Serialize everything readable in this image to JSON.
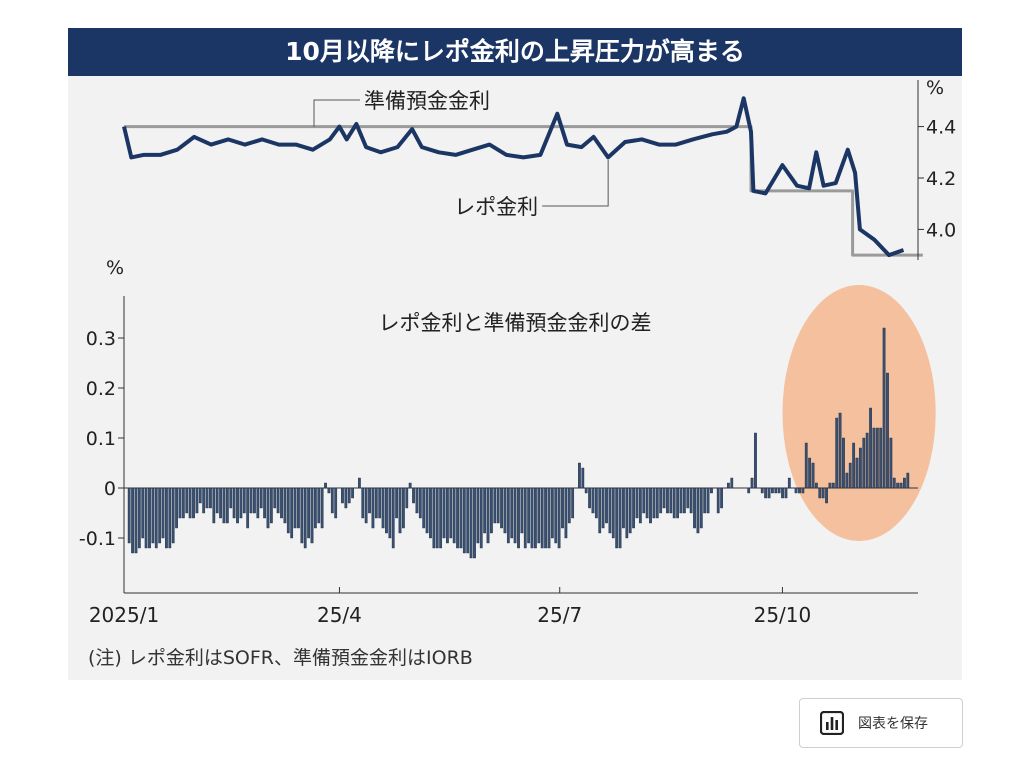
{
  "title": "10月以降にレポ金利の上昇圧力が高まる",
  "note": "(注) レポ金利はSOFR、準備預金金利はIORB",
  "save_button": {
    "label": "図表を保存",
    "icon": "bar-chart-icon"
  },
  "colors": {
    "title_bg": "#1b3664",
    "repo_line": "#1b3664",
    "iorb_line": "#9a9a9a",
    "bar": "#3a5070",
    "highlight": "#f5b78e"
  },
  "chart_data": [
    {
      "type": "line",
      "unit": "%",
      "ylim": [
        3.85,
        4.55
      ],
      "yticks": [
        "4.4",
        "4.2",
        "4.0"
      ],
      "series": [
        {
          "name": "準備預金金利",
          "points": [
            [
              "2025-01-02",
              4.4
            ],
            [
              "2025-09-18",
              4.4
            ],
            [
              "2025-09-18",
              4.15
            ],
            [
              "2025-10-30",
              4.15
            ],
            [
              "2025-10-30",
              3.9
            ],
            [
              "2025-11-28",
              3.9
            ]
          ]
        },
        {
          "name": "レポ金利",
          "points": [
            [
              "2025-01-02",
              4.4
            ],
            [
              "2025-01-05",
              4.28
            ],
            [
              "2025-01-10",
              4.29
            ],
            [
              "2025-01-17",
              4.29
            ],
            [
              "2025-01-24",
              4.31
            ],
            [
              "2025-01-31",
              4.36
            ],
            [
              "2025-02-07",
              4.33
            ],
            [
              "2025-02-14",
              4.35
            ],
            [
              "2025-02-21",
              4.33
            ],
            [
              "2025-02-28",
              4.35
            ],
            [
              "2025-03-07",
              4.33
            ],
            [
              "2025-03-14",
              4.33
            ],
            [
              "2025-03-21",
              4.31
            ],
            [
              "2025-03-28",
              4.35
            ],
            [
              "2025-04-01",
              4.4
            ],
            [
              "2025-04-04",
              4.35
            ],
            [
              "2025-04-08",
              4.41
            ],
            [
              "2025-04-12",
              4.32
            ],
            [
              "2025-04-18",
              4.3
            ],
            [
              "2025-04-25",
              4.32
            ],
            [
              "2025-05-01",
              4.39
            ],
            [
              "2025-05-05",
              4.32
            ],
            [
              "2025-05-12",
              4.3
            ],
            [
              "2025-05-19",
              4.29
            ],
            [
              "2025-05-26",
              4.31
            ],
            [
              "2025-06-02",
              4.33
            ],
            [
              "2025-06-09",
              4.29
            ],
            [
              "2025-06-16",
              4.28
            ],
            [
              "2025-06-23",
              4.29
            ],
            [
              "2025-06-30",
              4.45
            ],
            [
              "2025-07-04",
              4.33
            ],
            [
              "2025-07-10",
              4.32
            ],
            [
              "2025-07-15",
              4.36
            ],
            [
              "2025-07-21",
              4.28
            ],
            [
              "2025-07-28",
              4.34
            ],
            [
              "2025-08-04",
              4.35
            ],
            [
              "2025-08-11",
              4.33
            ],
            [
              "2025-08-18",
              4.33
            ],
            [
              "2025-08-25",
              4.35
            ],
            [
              "2025-09-02",
              4.37
            ],
            [
              "2025-09-08",
              4.38
            ],
            [
              "2025-09-12",
              4.4
            ],
            [
              "2025-09-15",
              4.51
            ],
            [
              "2025-09-18",
              4.38
            ],
            [
              "2025-09-19",
              4.15
            ],
            [
              "2025-09-24",
              4.14
            ],
            [
              "2025-10-01",
              4.25
            ],
            [
              "2025-10-07",
              4.17
            ],
            [
              "2025-10-12",
              4.16
            ],
            [
              "2025-10-15",
              4.3
            ],
            [
              "2025-10-18",
              4.17
            ],
            [
              "2025-10-23",
              4.18
            ],
            [
              "2025-10-28",
              4.31
            ],
            [
              "2025-10-31",
              4.22
            ],
            [
              "2025-11-02",
              4.0
            ],
            [
              "2025-11-08",
              3.96
            ],
            [
              "2025-11-14",
              3.9
            ],
            [
              "2025-11-20",
              3.92
            ]
          ]
        }
      ]
    },
    {
      "type": "bar",
      "title": "レポ金利と準備預金金利の差",
      "unit": "%",
      "ylim": [
        -0.2,
        0.38
      ],
      "yticks": [
        "0.3",
        "0.2",
        "0.1",
        "0",
        "-0.1"
      ],
      "xticks": [
        [
          "2025-01-02",
          "2025/1"
        ],
        [
          "2025-04-01",
          "25/4"
        ],
        [
          "2025-07-01",
          "25/7"
        ],
        [
          "2025-10-01",
          "25/10"
        ]
      ],
      "highlight": [
        "2025-10-01",
        "2025-11-30"
      ],
      "values": [
        -0.11,
        -0.13,
        -0.13,
        -0.12,
        -0.1,
        -0.12,
        -0.12,
        -0.11,
        -0.12,
        -0.11,
        -0.1,
        -0.12,
        -0.12,
        -0.11,
        -0.08,
        -0.06,
        -0.06,
        -0.05,
        -0.06,
        -0.06,
        -0.05,
        -0.03,
        -0.05,
        -0.04,
        -0.04,
        -0.07,
        -0.05,
        -0.06,
        -0.07,
        -0.07,
        -0.04,
        -0.06,
        -0.07,
        -0.06,
        -0.05,
        -0.08,
        -0.05,
        -0.05,
        -0.06,
        -0.04,
        -0.06,
        -0.08,
        -0.07,
        -0.04,
        -0.05,
        -0.06,
        -0.07,
        -0.09,
        -0.1,
        -0.08,
        -0.08,
        -0.11,
        -0.12,
        -0.1,
        -0.11,
        -0.08,
        -0.07,
        -0.08,
        0.01,
        -0.01,
        -0.05,
        -0.06,
        0.0,
        -0.03,
        -0.04,
        -0.03,
        -0.02,
        0.0,
        0.02,
        -0.06,
        -0.07,
        -0.05,
        -0.08,
        -0.06,
        -0.06,
        -0.08,
        -0.09,
        -0.1,
        -0.12,
        -0.06,
        -0.09,
        -0.08,
        -0.04,
        0.01,
        -0.03,
        -0.05,
        -0.06,
        -0.08,
        -0.09,
        -0.1,
        -0.12,
        -0.12,
        -0.12,
        -0.1,
        -0.11,
        -0.1,
        -0.11,
        -0.12,
        -0.12,
        -0.13,
        -0.13,
        -0.14,
        -0.14,
        -0.11,
        -0.12,
        -0.09,
        -0.11,
        -0.09,
        -0.07,
        -0.07,
        -0.08,
        -0.09,
        -0.11,
        -0.1,
        -0.11,
        -0.12,
        -0.09,
        -0.12,
        -0.11,
        -0.12,
        -0.12,
        -0.11,
        -0.12,
        -0.12,
        -0.12,
        -0.1,
        -0.11,
        -0.12,
        -0.08,
        -0.1,
        -0.07,
        -0.06,
        -0.0,
        0.05,
        0.04,
        -0.01,
        -0.04,
        -0.05,
        -0.06,
        -0.09,
        -0.08,
        -0.07,
        -0.09,
        -0.1,
        -0.12,
        -0.12,
        -0.08,
        -0.1,
        -0.09,
        -0.08,
        -0.06,
        -0.07,
        -0.05,
        -0.06,
        -0.07,
        -0.06,
        -0.06,
        -0.05,
        -0.04,
        -0.05,
        -0.05,
        -0.06,
        -0.06,
        -0.05,
        -0.05,
        -0.04,
        -0.05,
        -0.08,
        -0.09,
        -0.08,
        -0.05,
        -0.05,
        -0.01,
        0.0,
        -0.05,
        -0.04,
        0.0,
        0.01,
        0.02,
        0.0,
        0.0,
        0.0,
        0.0,
        -0.01,
        0.02,
        0.11,
        0.0,
        -0.01,
        -0.02,
        -0.02,
        -0.01,
        -0.01,
        -0.01,
        -0.02,
        -0.02,
        0.02,
        0.0,
        -0.01,
        -0.01,
        -0.01,
        0.09,
        0.06,
        0.05,
        0.01,
        -0.02,
        -0.02,
        -0.03,
        0.01,
        0.01,
        0.14,
        0.15,
        0.1,
        0.03,
        0.05,
        0.09,
        0.06,
        0.08,
        0.1,
        0.11,
        0.16,
        0.12,
        0.12,
        0.12,
        0.32,
        0.23,
        0.1,
        0.02,
        0.01,
        0.01,
        0.02,
        0.03
      ]
    }
  ]
}
